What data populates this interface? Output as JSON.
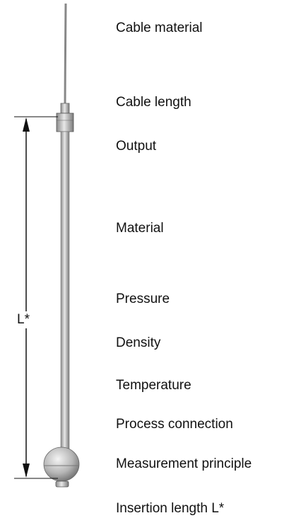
{
  "labels": [
    "Cable material",
    "Cable length",
    "Output",
    "Material",
    "Pressure",
    "Density",
    "Temperature",
    "Process connection",
    "Measurement principle",
    "Insertion length L*"
  ],
  "dimension": {
    "label": "L*"
  }
}
